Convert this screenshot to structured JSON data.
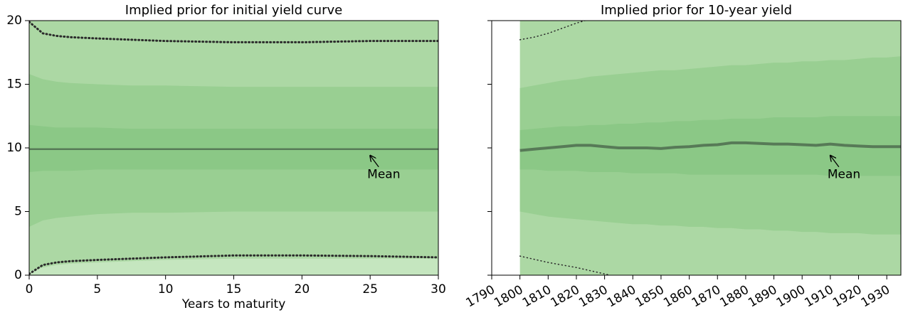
{
  "chart_data": [
    {
      "type": "fan",
      "title": "Implied prior for initial yield curve",
      "xlabel": "Years to maturity",
      "x": [
        0,
        1,
        2,
        3,
        5,
        7.5,
        10,
        15,
        20,
        25,
        30
      ],
      "xlim": [
        0,
        30
      ],
      "xticks": [
        0,
        5,
        10,
        15,
        20,
        25,
        30
      ],
      "ylim": [
        0,
        20
      ],
      "yticks": [
        0,
        5,
        10,
        15,
        20
      ],
      "ytick_labels": true,
      "bands": [
        {
          "color": "#c5e6bf",
          "lower": [
            -1,
            -1,
            -1,
            -1,
            -1,
            -1,
            -1,
            -1,
            -1,
            -1,
            -1
          ],
          "upper": [
            21,
            21,
            21,
            21,
            21,
            21,
            21,
            21,
            21,
            21,
            21
          ]
        },
        {
          "color": "#acd8a4",
          "lower": [
            0.3,
            0.6,
            0.8,
            0.9,
            1,
            1.1,
            1.2,
            1.3,
            1.3,
            1.3,
            1.3
          ],
          "upper": [
            21,
            21,
            21,
            21,
            21,
            21,
            21,
            21,
            21,
            21,
            21
          ]
        },
        {
          "color": "#99cf92",
          "lower": [
            3.8,
            4.3,
            4.5,
            4.6,
            4.8,
            4.9,
            4.9,
            5,
            5,
            5,
            5
          ],
          "upper": [
            15.8,
            15.4,
            15.2,
            15.1,
            15,
            14.9,
            14.9,
            14.8,
            14.8,
            14.8,
            14.8
          ]
        },
        {
          "color": "#8bc886",
          "lower": [
            8.1,
            8.2,
            8.2,
            8.2,
            8.3,
            8.3,
            8.3,
            8.3,
            8.3,
            8.3,
            8.3
          ],
          "upper": [
            11.8,
            11.7,
            11.6,
            11.6,
            11.6,
            11.5,
            11.5,
            11.5,
            11.5,
            11.5,
            11.5
          ]
        }
      ],
      "series": [
        {
          "color": "#577a57",
          "style": "solid",
          "width": 2.5,
          "values": [
            9.9,
            9.9,
            9.9,
            9.9,
            9.9,
            9.9,
            9.9,
            9.9,
            9.9,
            9.9,
            9.9
          ]
        },
        {
          "color": "#2b2b2b",
          "style": "dotted",
          "width": 3,
          "values": [
            19.9,
            19,
            18.8,
            18.7,
            18.6,
            18.5,
            18.4,
            18.3,
            18.3,
            18.4,
            18.4
          ]
        },
        {
          "color": "#2b2b2b",
          "style": "dotted",
          "width": 3,
          "values": [
            0.1,
            0.8,
            1,
            1.1,
            1.2,
            1.3,
            1.4,
            1.55,
            1.55,
            1.5,
            1.4
          ]
        }
      ],
      "annotations": [
        {
          "text": "Mean",
          "x": 25,
          "y": 9.4
        }
      ]
    },
    {
      "type": "fan",
      "title": "Implied prior for 10-year yield",
      "x": [
        1800,
        1805,
        1810,
        1815,
        1820,
        1825,
        1830,
        1835,
        1840,
        1845,
        1850,
        1855,
        1860,
        1865,
        1870,
        1875,
        1880,
        1885,
        1890,
        1895,
        1900,
        1905,
        1910,
        1915,
        1920,
        1925,
        1930,
        1935
      ],
      "xlim": [
        1790,
        1935
      ],
      "xticks": [
        1790,
        1800,
        1810,
        1820,
        1830,
        1840,
        1850,
        1860,
        1870,
        1880,
        1890,
        1900,
        1910,
        1920,
        1930
      ],
      "ylim": [
        0,
        20
      ],
      "yticks": [
        0,
        5,
        10,
        15,
        20
      ],
      "ytick_labels": false,
      "bands": [
        {
          "color": "#acd8a4",
          "lower": [
            -3,
            -3,
            -3,
            -3,
            -3,
            -3,
            -3,
            -3,
            -3,
            -3,
            -3,
            -3,
            -3,
            -3,
            -3,
            -3,
            -3,
            -3,
            -3,
            -3,
            -3,
            -3,
            -3,
            -3,
            -3,
            -3,
            -3,
            -3
          ],
          "upper": [
            23,
            23,
            23,
            23,
            23,
            23,
            23,
            23,
            23,
            23,
            23,
            23,
            23,
            23,
            23,
            23,
            23,
            23,
            23,
            23,
            23,
            23,
            23,
            23,
            23,
            23,
            23,
            23
          ]
        },
        {
          "color": "#99cf92",
          "lower": [
            5,
            4.8,
            4.6,
            4.5,
            4.4,
            4.3,
            4.2,
            4.1,
            4,
            4,
            3.9,
            3.9,
            3.8,
            3.8,
            3.7,
            3.7,
            3.6,
            3.6,
            3.5,
            3.5,
            3.4,
            3.4,
            3.3,
            3.3,
            3.3,
            3.2,
            3.2,
            3.2
          ],
          "upper": [
            14.7,
            14.9,
            15.1,
            15.3,
            15.4,
            15.6,
            15.7,
            15.8,
            15.9,
            16,
            16.1,
            16.1,
            16.2,
            16.3,
            16.4,
            16.5,
            16.5,
            16.6,
            16.7,
            16.7,
            16.8,
            16.8,
            16.9,
            16.9,
            17,
            17.1,
            17.1,
            17.2
          ]
        },
        {
          "color": "#8bc886",
          "lower": [
            8.3,
            8.3,
            8.2,
            8.2,
            8.2,
            8.1,
            8.1,
            8.1,
            8,
            8,
            8,
            8,
            7.9,
            7.9,
            7.9,
            7.9,
            7.9,
            7.9,
            7.9,
            7.9,
            7.9,
            7.9,
            7.8,
            7.8,
            7.8,
            7.8,
            7.8,
            7.8
          ],
          "upper": [
            11.4,
            11.5,
            11.6,
            11.7,
            11.7,
            11.8,
            11.8,
            11.9,
            11.9,
            12,
            12,
            12.1,
            12.1,
            12.2,
            12.2,
            12.3,
            12.3,
            12.3,
            12.4,
            12.4,
            12.4,
            12.4,
            12.5,
            12.5,
            12.5,
            12.5,
            12.5,
            12.5
          ]
        }
      ],
      "series": [
        {
          "color": "#577a57",
          "style": "solid",
          "width": 4,
          "values": [
            9.8,
            9.9,
            10,
            10.1,
            10.2,
            10.2,
            10.1,
            10,
            10,
            10,
            9.95,
            10.05,
            10.1,
            10.2,
            10.25,
            10.4,
            10.4,
            10.35,
            10.3,
            10.3,
            10.25,
            10.2,
            10.3,
            10.2,
            10.15,
            10.1,
            10.1,
            10.1
          ]
        },
        {
          "color": "#2b2b2b",
          "style": "dotted",
          "width": 1.5,
          "x": [
            1800,
            1805,
            1810,
            1815,
            1820,
            1823
          ],
          "values": [
            18.5,
            18.7,
            19,
            19.4,
            19.8,
            20
          ]
        },
        {
          "color": "#2b2b2b",
          "style": "dotted",
          "width": 1.5,
          "x": [
            1800,
            1810,
            1820,
            1830,
            1832
          ],
          "values": [
            1.5,
            1,
            0.6,
            0.1,
            0
          ]
        }
      ],
      "annotations": [
        {
          "text": "Mean",
          "x": 1910,
          "y": 9.4
        }
      ]
    }
  ]
}
